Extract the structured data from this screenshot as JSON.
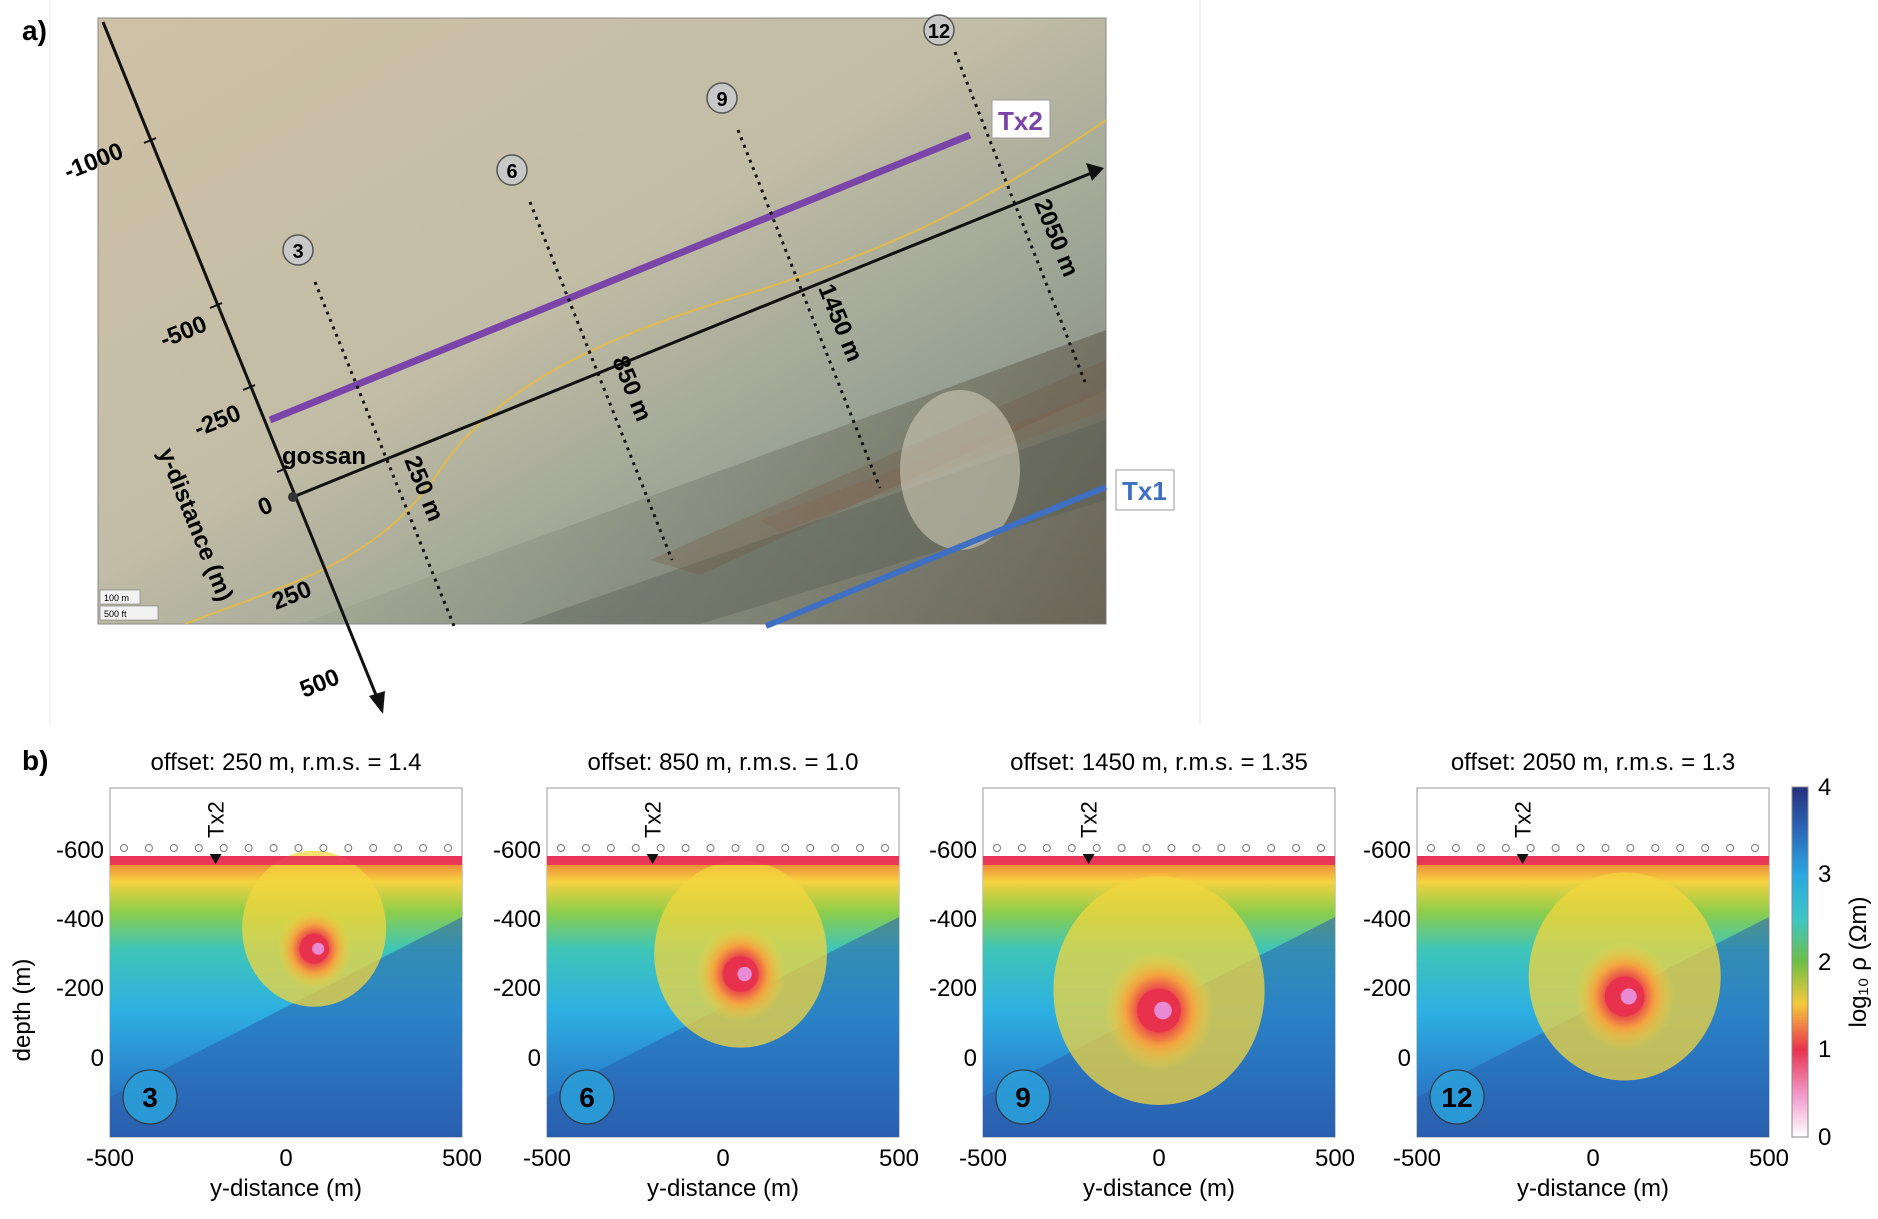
{
  "panel_a": {
    "label": "a)",
    "y_axis_title": "y-distance (m)",
    "y_axis_ticks": [
      "-1000",
      "-500",
      "-250",
      "0",
      "250",
      "500"
    ],
    "gossan_label": "gossan",
    "tx1_label": "Tx1",
    "tx2_label": "Tx2",
    "tx1_color": "#3f6fc2",
    "tx2_color": "#7b44a8",
    "profiles": [
      {
        "id": "3",
        "offset": "250 m"
      },
      {
        "id": "6",
        "offset": "850 m"
      },
      {
        "id": "9",
        "offset": "1450 m"
      },
      {
        "id": "12",
        "offset": "2050 m"
      }
    ],
    "scale_bar": [
      "100 m",
      "500 ft"
    ]
  },
  "panel_b": {
    "label": "b)",
    "y_axis_title": "depth (m)",
    "x_axis_title": "y-distance (m)",
    "depth_ticks": [
      "-600",
      "-400",
      "-200",
      "0"
    ],
    "x_ticks": [
      "-500",
      "0",
      "500"
    ],
    "marker_label": "Tx2",
    "colorbar_title": "log₁₀ ρ (Ωm)",
    "colorbar_ticks": [
      "0",
      "1",
      "2",
      "3",
      "4"
    ],
    "sections": [
      {
        "id": "3",
        "title": "offset: 250 m, r.m.s. = 1.4"
      },
      {
        "id": "6",
        "title": "offset: 850 m, r.m.s. = 1.0"
      },
      {
        "id": "9",
        "title": "offset: 1450 m, r.m.s. = 1.35"
      },
      {
        "id": "12",
        "title": "offset: 2050 m, r.m.s. = 1.3"
      }
    ]
  }
}
